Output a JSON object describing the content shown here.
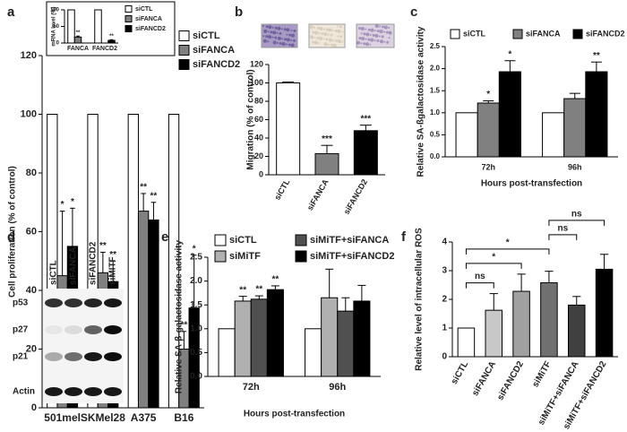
{
  "panels": [
    "a",
    "b",
    "c",
    "d",
    "e",
    "f"
  ],
  "chart_data": [
    {
      "type": "bar",
      "y_label": "Cell proliferation (% of control)",
      "categories": [
        "501mel",
        "SKMel28",
        "A375",
        "B16"
      ],
      "series": [
        {
          "name": "siCTL",
          "color": "#ffffff",
          "values": [
            100,
            100,
            100,
            100
          ]
        },
        {
          "name": "siFANCA",
          "color": "#808080",
          "values": [
            45,
            46,
            67,
            20
          ],
          "errors": [
            22,
            7,
            6,
            6
          ],
          "significance": [
            "*",
            "**",
            "**",
            "**"
          ]
        },
        {
          "name": "siFANCD2",
          "color": "#000000",
          "values": [
            55,
            43,
            64,
            34
          ],
          "errors": [
            13,
            7,
            6,
            18
          ],
          "significance": [
            "*",
            "**",
            "**",
            "*"
          ]
        }
      ],
      "ylim": [
        0,
        120
      ],
      "yticks": [
        0,
        20,
        40,
        60,
        80,
        100,
        120
      ]
    },
    {
      "type": "bar",
      "y_label": "mRNA level (%)",
      "categories": [
        "FANCA",
        "FANCD2"
      ],
      "series": [
        {
          "name": "siCTL",
          "color": "#ffffff",
          "values": [
            100,
            100
          ]
        },
        {
          "name": "siFANCA",
          "color": "#808080",
          "values": [
            18,
            null
          ],
          "errors": [
            3,
            null
          ],
          "significance": [
            "**",
            null
          ]
        },
        {
          "name": "siFANCD2",
          "color": "#000000",
          "values": [
            null,
            8
          ],
          "errors": [
            null,
            2
          ],
          "significance": [
            null,
            "**"
          ]
        }
      ],
      "ylim": [
        0,
        100
      ],
      "yticks": [
        0,
        50,
        100
      ]
    },
    {
      "type": "bar",
      "y_label": "Migration (% of control)",
      "categories": [
        "siCTL",
        "siFANCA",
        "siFANCD2"
      ],
      "values": [
        100,
        23,
        48
      ],
      "errors": [
        1,
        9,
        6
      ],
      "colors": [
        "#ffffff",
        "#808080",
        "#000000"
      ],
      "significance": [
        null,
        "***",
        "***"
      ],
      "ylim": [
        0,
        120
      ],
      "yticks": [
        0,
        20,
        40,
        60,
        80,
        100,
        120
      ]
    },
    {
      "type": "bar",
      "y_label": "Relative SA-ßgalactosidase activity",
      "x_label": "Hours post-transfection",
      "categories": [
        "72h",
        "96h"
      ],
      "series": [
        {
          "name": "siCTL",
          "color": "#ffffff",
          "values": [
            1,
            1
          ]
        },
        {
          "name": "siFANCA",
          "color": "#808080",
          "values": [
            1.22,
            1.32
          ],
          "errors": [
            0.05,
            0.12
          ],
          "significance": [
            "*",
            null
          ]
        },
        {
          "name": "siFANCD2",
          "color": "#000000",
          "values": [
            1.93,
            1.93
          ],
          "errors": [
            0.25,
            0.22
          ],
          "significance": [
            "*",
            "**"
          ]
        }
      ],
      "ylim": [
        0,
        2.5
      ],
      "yticks": [
        {
          "value": 0,
          "label": "0.0"
        },
        {
          "value": 0.5,
          "label": "0.5"
        },
        {
          "value": 1,
          "label": "1.0"
        },
        {
          "value": 1.5,
          "label": "1.5"
        },
        {
          "value": 2,
          "label": "2.0"
        },
        {
          "value": 2.5,
          "label": "2.5"
        }
      ]
    },
    {
      "type": "bar",
      "y_label": "Relative SA-β-galactosidase activity",
      "x_label": "Hours post-transfection",
      "categories": [
        "72h",
        "96h"
      ],
      "series": [
        {
          "name": "siCTL",
          "color": "#ffffff",
          "values": [
            1,
            1
          ]
        },
        {
          "name": "siMiTF",
          "color": "#b0b0b0",
          "values": [
            1.58,
            1.65
          ],
          "errors": [
            0.1,
            0.6
          ],
          "significance": [
            "**",
            null
          ]
        },
        {
          "name": "siMiTF+siFANCA",
          "color": "#505050",
          "values": [
            1.62,
            1.37
          ],
          "errors": [
            0.07,
            0.28
          ],
          "significance": [
            "**",
            null
          ]
        },
        {
          "name": "siMiTF+siFANCD2",
          "color": "#000000",
          "values": [
            1.82,
            1.58
          ],
          "errors": [
            0.08,
            0.33
          ],
          "significance": [
            "**",
            null
          ]
        }
      ],
      "ylim": [
        0,
        2.5
      ],
      "yticks": [
        {
          "value": 0,
          "label": "0.0"
        },
        {
          "value": 0.5,
          "label": "0.5"
        },
        {
          "value": 1,
          "label": "1.0"
        },
        {
          "value": 1.5,
          "label": "1.5"
        },
        {
          "value": 2,
          "label": "2.0"
        },
        {
          "value": 2.5,
          "label": "2.5"
        }
      ]
    },
    {
      "type": "bar",
      "y_label": "Relative level of intracellular ROS",
      "categories": [
        "siCTL",
        "siFANCA",
        "siFANCD2",
        "siMiTF",
        "siMiTF+siFANCA",
        "siMiTF+siFANCD2"
      ],
      "values": [
        1,
        1.62,
        2.28,
        2.58,
        1.8,
        3.05
      ],
      "errors": [
        0,
        0.58,
        0.6,
        0.4,
        0.3,
        0.52
      ],
      "colors": [
        "#ffffff",
        "#c8c8c8",
        "#a0a0a0",
        "#707070",
        "#404040",
        "#000000"
      ],
      "ylim": [
        0,
        4
      ],
      "yticks": [
        0,
        1,
        2,
        3,
        4
      ],
      "comparisons": [
        {
          "pair": [
            "siCTL",
            "siFANCA"
          ],
          "label": "ns"
        },
        {
          "pair": [
            "siCTL",
            "siFANCD2"
          ],
          "label": "*"
        },
        {
          "pair": [
            "siCTL",
            "siMiTF"
          ],
          "label": "*"
        },
        {
          "pair": [
            "siMiTF",
            "siMiTF+siFANCA"
          ],
          "label": "ns"
        },
        {
          "pair": [
            "siMiTF",
            "siMiTF+siFANCD2"
          ],
          "label": "ns"
        }
      ]
    }
  ],
  "blot": {
    "columns": [
      "siCTL",
      "siFANCA",
      "siFANCD2",
      "siMITF"
    ],
    "rows": [
      "p53",
      "p27",
      "p21",
      "Actin"
    ]
  }
}
